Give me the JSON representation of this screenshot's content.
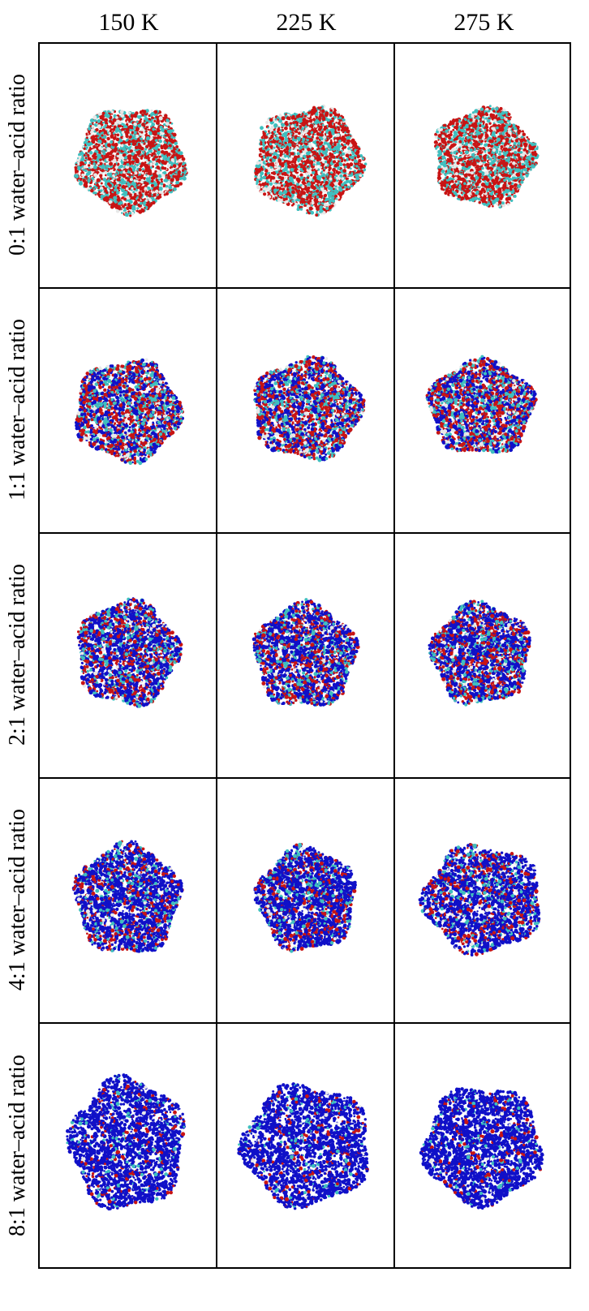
{
  "columns": [
    {
      "label": "150 K"
    },
    {
      "label": "225 K"
    },
    {
      "label": "275 K"
    }
  ],
  "rows": [
    {
      "label": "0:1 water–acid ratio",
      "blue_fraction": 0.0
    },
    {
      "label": "1:1 water–acid ratio",
      "blue_fraction": 0.35
    },
    {
      "label": "2:1 water–acid ratio",
      "blue_fraction": 0.5
    },
    {
      "label": "4:1 water–acid ratio",
      "blue_fraction": 0.65
    },
    {
      "label": "8:1 water–acid ratio",
      "blue_fraction": 0.82
    }
  ],
  "colors": {
    "water": "#1010c8",
    "oxygen": "#c81414",
    "carbon": "#3fbfbf",
    "hydrogen": "#e8e8e8",
    "grid": "#000000"
  }
}
